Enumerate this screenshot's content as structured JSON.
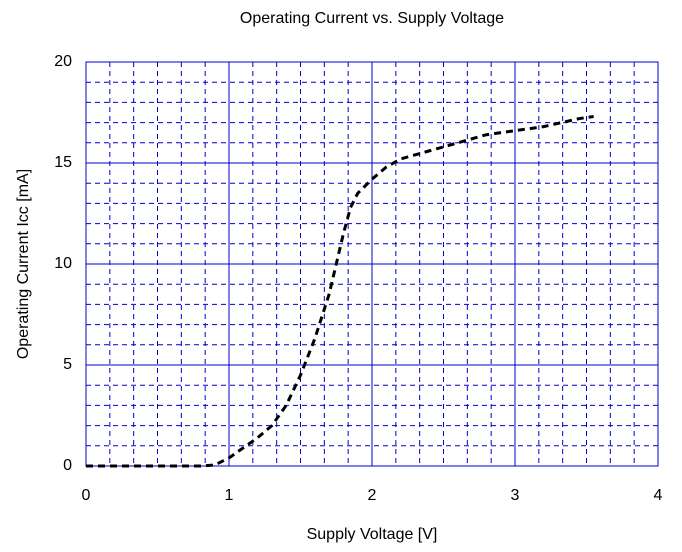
{
  "chart_data": {
    "type": "line",
    "title": "Operating Current vs. Supply Voltage",
    "x_label": "Supply Voltage [V]",
    "y_label": "Operating Current Icc [mA]",
    "x": [
      0,
      0.2,
      0.4,
      0.6,
      0.8,
      0.9,
      1.0,
      1.1,
      1.2,
      1.3,
      1.4,
      1.5,
      1.6,
      1.7,
      1.75,
      1.8,
      1.85,
      1.9,
      2.0,
      2.1,
      2.2,
      2.4,
      2.6,
      2.8,
      3.0,
      3.2,
      3.45,
      3.55
    ],
    "series": [
      {
        "color": "#000000",
        "values": [
          0,
          0,
          0,
          0,
          0,
          0.05,
          0.4,
          0.9,
          1.4,
          2.0,
          3.0,
          4.5,
          6.3,
          8.5,
          10,
          11.5,
          12.8,
          13.5,
          14.2,
          14.8,
          15.2,
          15.6,
          16.0,
          16.4,
          16.6,
          16.8,
          17.2,
          17.3
        ]
      }
    ],
    "xlim": [
      0,
      4
    ],
    "xticks": [
      0,
      1,
      2,
      3,
      4
    ],
    "ylim": [
      0,
      20
    ],
    "yticks": [
      0,
      5,
      10,
      15,
      20
    ],
    "grid": true,
    "grid_color": "#0000cc",
    "x_minor_divisions": 6,
    "y_minor_divisions": 5,
    "line_style": "dashed"
  }
}
